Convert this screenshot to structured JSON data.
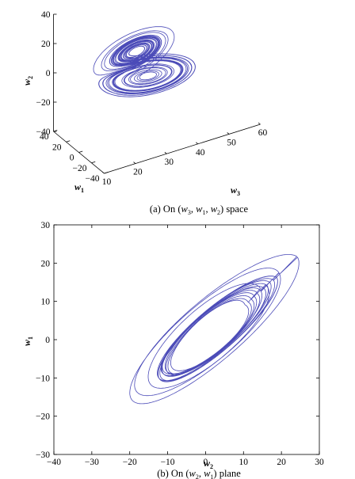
{
  "chart_data": [
    {
      "type": "line",
      "projection": "3d",
      "caption": {
        "prefix": "(a) On (",
        "v1": "w",
        "s1": "3",
        "v2": "w",
        "s2": "1",
        "v3": "w",
        "s3": "2",
        "suffix": ") space"
      },
      "axes": {
        "w3": {
          "label": "w",
          "sub": "3",
          "ticks": [
            "10",
            "20",
            "30",
            "40",
            "50",
            "60"
          ],
          "range": [
            10,
            60
          ]
        },
        "w1": {
          "label": "w",
          "sub": "1",
          "ticks": [
            "40",
            "20",
            "0",
            "−20",
            "−40"
          ],
          "range": [
            -40,
            40
          ]
        },
        "w2": {
          "label": "w",
          "sub": "2",
          "ticks": [
            "40",
            "20",
            "0",
            "−20",
            "−40"
          ],
          "range": [
            -40,
            40
          ]
        }
      },
      "series": [
        {
          "color": "#4b4bb8",
          "description_of_data": "chaotic double-scroll attractor trajectory"
        }
      ],
      "grid": false
    },
    {
      "type": "line",
      "caption": {
        "prefix": "(b) On (",
        "v1": "w",
        "s1": "2",
        "v2": "w",
        "s2": "1",
        "suffix": ")  plane"
      },
      "xlabel": {
        "text": "w",
        "sub": "2"
      },
      "ylabel": {
        "text": "w",
        "sub": "1"
      },
      "xlim": [
        -40,
        30
      ],
      "ylim": [
        -30,
        30
      ],
      "xticks": [
        "−40",
        "−30",
        "−20",
        "−10",
        "0",
        "10",
        "20",
        "30"
      ],
      "yticks": [
        "−30",
        "−20",
        "−10",
        "0",
        "10",
        "20",
        "30"
      ],
      "series": [
        {
          "color": "#4b4bb8",
          "description_of_data": "elliptical chaotic trajectory tilted along w1 ≈ 0.85·w2"
        }
      ],
      "grid": false
    }
  ]
}
